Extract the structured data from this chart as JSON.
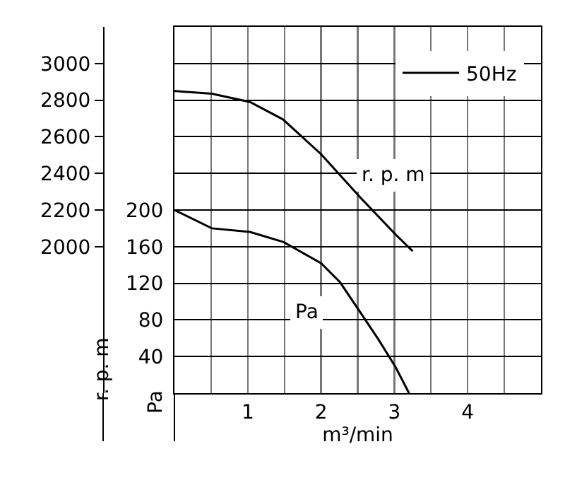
{
  "chart_data": {
    "type": "line",
    "xlabel": "m³/min",
    "ylabel": "Pa",
    "y2label": "r. p. m",
    "xlim": [
      0,
      5
    ],
    "xticks": [
      {
        "value": 0.5,
        "label": null
      },
      1,
      {
        "value": 1.5,
        "label": null
      },
      2,
      {
        "value": 2.5,
        "label": null
      },
      3,
      {
        "value": 3.5,
        "label": null
      },
      4,
      {
        "value": 4.5,
        "label": null
      }
    ],
    "ylim": [
      0,
      400
    ],
    "yticks": [
      40,
      80,
      120,
      160,
      200,
      {
        "value": 240,
        "label": null
      },
      {
        "value": 280,
        "label": null
      },
      {
        "value": 320,
        "label": null
      },
      {
        "value": 360,
        "label": null
      }
    ],
    "y2lim": [
      1200,
      3200
    ],
    "y2ticks": [
      2000,
      2200,
      2400,
      2600,
      2800,
      3000
    ],
    "grid": true,
    "legend": "top right",
    "marker": "none",
    "line_style": "solid",
    "series": [
      {
        "name": "50Hz",
        "color": "#000000",
        "axis": "y2",
        "x": [
          0,
          0.51,
          1.03,
          1.48,
          2.0,
          2.26,
          2.52,
          3.02,
          3.25
        ],
        "values": [
          2850,
          2835,
          2790,
          2695,
          2505,
          2390,
          2275,
          2065,
          1975
        ]
      },
      {
        "color": "#000000",
        "x": [
          0,
          0.51,
          1.03,
          1.49,
          2.0,
          2.26,
          2.52,
          2.78,
          3.02,
          3.2
        ],
        "values": [
          200,
          180,
          176,
          165,
          142,
          121,
          90,
          59,
          28,
          0
        ]
      }
    ],
    "annotations": [
      "r. p. m",
      "Pa"
    ]
  }
}
